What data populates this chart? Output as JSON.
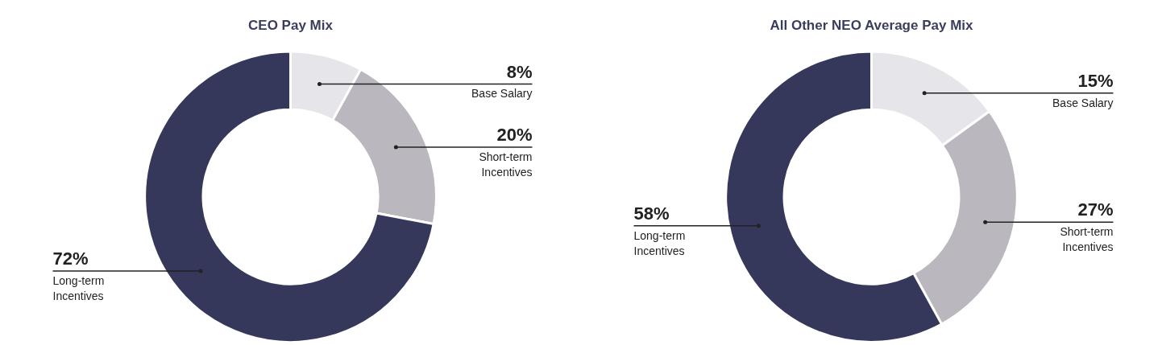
{
  "chart_data": [
    {
      "type": "donut",
      "title": "CEO Pay Mix",
      "categories": [
        "Base Salary",
        "Short-term Incentives",
        "Long-term Incentives"
      ],
      "values": [
        8,
        20,
        72
      ],
      "colors": [
        "#e6e5e9",
        "#bbb7bf",
        "#35375b"
      ],
      "value_labels": [
        "8%",
        "20%",
        "72%"
      ]
    },
    {
      "type": "donut",
      "title": "All Other NEO Average Pay Mix",
      "categories": [
        "Base Salary",
        "Short-term Incentives",
        "Long-term Incentives"
      ],
      "values": [
        15,
        27,
        58
      ],
      "colors": [
        "#e6e5e9",
        "#bbb7bf",
        "#35375b"
      ],
      "value_labels": [
        "15%",
        "27%",
        "58%"
      ]
    }
  ]
}
